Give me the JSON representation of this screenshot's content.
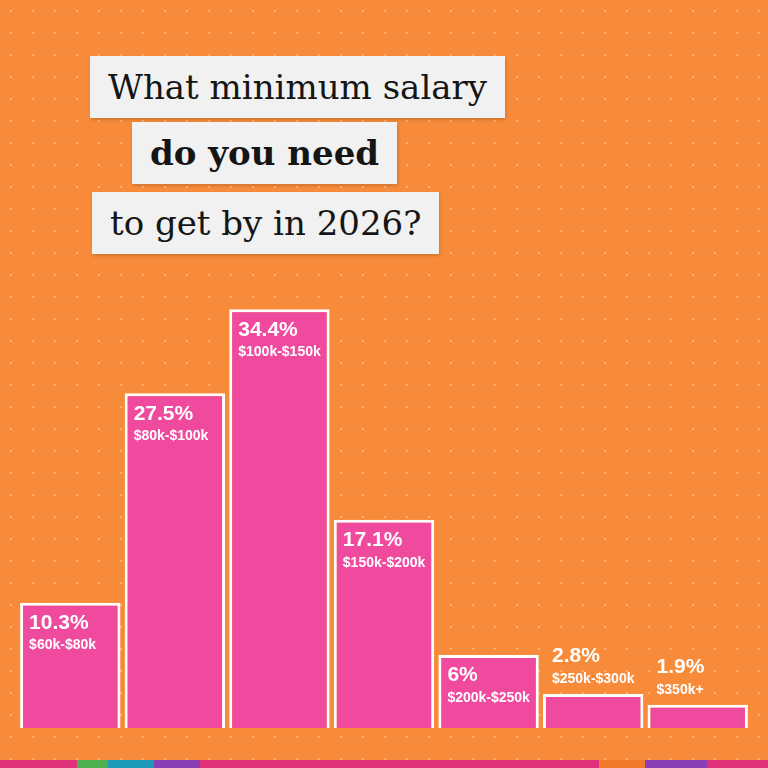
{
  "chart_data": {
    "type": "bar",
    "title": [
      "What minimum salary",
      "do you need",
      "to get by in 2026?"
    ],
    "categories": [
      "$60k-$80k",
      "$80k-$100k",
      "$100k-$150k",
      "$150k-$200k",
      "$200k-$250k",
      "$250k-$300k",
      "$350k+"
    ],
    "values": [
      10.3,
      27.5,
      34.4,
      17.1,
      6,
      2.8,
      1.9
    ],
    "value_labels": [
      "10.3%",
      "27.5%",
      "34.4%",
      "17.1%",
      "6%",
      "2.8%",
      "1.9%"
    ],
    "color": "#f04a9f",
    "ylim": [
      0,
      35
    ],
    "grid": false,
    "data_labels": true,
    "tick_labels": false
  }
}
